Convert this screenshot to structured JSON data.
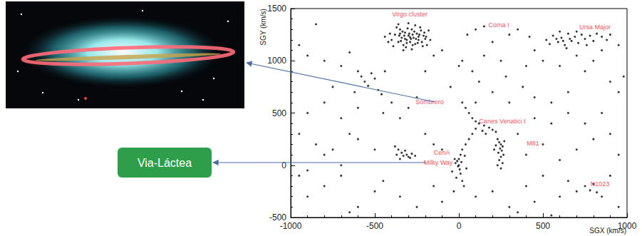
{
  "chart_data": {
    "type": "scatter",
    "xlabel": "SGX (km/s)",
    "ylabel": "SGY (km/s)",
    "xlim": [
      -1000,
      1000
    ],
    "ylim": [
      -500,
      1500
    ],
    "xticks": [
      -1000,
      -500,
      0,
      500,
      1000
    ],
    "yticks": [
      -500,
      0,
      500,
      1000,
      1500
    ],
    "grid": false,
    "color": "#000000",
    "marker": "circle",
    "side_label": "Via-Láctea",
    "annotations": [
      {
        "text": "Virgo cluster",
        "x": -292,
        "y": 1445
      },
      {
        "text": "Coma I",
        "x": 237,
        "y": 1343
      },
      {
        "text": "Ursa Major",
        "x": 809,
        "y": 1322
      },
      {
        "text": "Sombrero",
        "x": -174,
        "y": 606
      },
      {
        "text": "Canes Venatici I",
        "x": 258,
        "y": 421
      },
      {
        "text": "M81",
        "x": 441,
        "y": 210
      },
      {
        "text": "CenA",
        "x": -102,
        "y": 121
      },
      {
        "text": "Milky Way",
        "x": -123,
        "y": 26
      },
      {
        "text": "N1023",
        "x": 839,
        "y": -179
      }
    ],
    "points": [
      [
        -400,
        1200
      ],
      [
        -380,
        1250
      ],
      [
        -360,
        1180
      ],
      [
        -350,
        1300
      ],
      [
        -340,
        1220
      ],
      [
        -330,
        1150
      ],
      [
        -320,
        1270
      ],
      [
        -310,
        1200
      ],
      [
        -300,
        1240
      ],
      [
        -290,
        1180
      ],
      [
        -280,
        1300
      ],
      [
        -270,
        1220
      ],
      [
        -260,
        1160
      ],
      [
        -250,
        1260
      ],
      [
        -240,
        1200
      ],
      [
        -230,
        1320
      ],
      [
        -220,
        1180
      ],
      [
        -210,
        1240
      ],
      [
        -200,
        1210
      ],
      [
        -190,
        1150
      ],
      [
        -410,
        1260
      ],
      [
        -390,
        1140
      ],
      [
        -370,
        1320
      ],
      [
        -355,
        1240
      ],
      [
        -345,
        1190
      ],
      [
        -335,
        1280
      ],
      [
        -325,
        1240
      ],
      [
        -315,
        1130
      ],
      [
        -305,
        1310
      ],
      [
        -295,
        1260
      ],
      [
        -285,
        1210
      ],
      [
        -275,
        1150
      ],
      [
        -265,
        1280
      ],
      [
        -255,
        1210
      ],
      [
        -245,
        1170
      ],
      [
        -235,
        1250
      ],
      [
        -225,
        1290
      ],
      [
        -215,
        1140
      ],
      [
        -205,
        1270
      ],
      [
        -195,
        1230
      ],
      [
        -420,
        1180
      ],
      [
        -300,
        1360
      ],
      [
        -260,
        1340
      ],
      [
        -330,
        1100
      ],
      [
        -280,
        1110
      ],
      [
        -360,
        1350
      ],
      [
        -180,
        1290
      ],
      [
        -170,
        1200
      ],
      [
        -440,
        1230
      ],
      [
        -310,
        1170
      ],
      [
        -290,
        1225
      ],
      [
        -275,
        1250
      ],
      [
        -350,
        1260
      ],
      [
        -320,
        1210
      ],
      [
        -240,
        1230
      ],
      [
        520,
        1200
      ],
      [
        560,
        1240
      ],
      [
        590,
        1180
      ],
      [
        610,
        1220
      ],
      [
        630,
        1150
      ],
      [
        650,
        1260
      ],
      [
        670,
        1190
      ],
      [
        690,
        1230
      ],
      [
        710,
        1170
      ],
      [
        730,
        1250
      ],
      [
        750,
        1210
      ],
      [
        780,
        1240
      ],
      [
        800,
        1190
      ],
      [
        820,
        1260
      ],
      [
        850,
        1230
      ],
      [
        880,
        1200
      ],
      [
        600,
        1280
      ],
      [
        640,
        1120
      ],
      [
        700,
        1280
      ],
      [
        760,
        1150
      ],
      [
        540,
        1160
      ],
      [
        660,
        1210
      ],
      [
        620,
        1190
      ],
      [
        580,
        1210
      ],
      [
        100,
        1300
      ],
      [
        150,
        1330
      ],
      [
        50,
        1250
      ],
      [
        200,
        1180
      ],
      [
        300,
        1250
      ],
      [
        350,
        1300
      ],
      [
        420,
        1230
      ],
      [
        900,
        1250
      ],
      [
        950,
        1150
      ],
      [
        980,
        850
      ],
      [
        -950,
        1150
      ],
      [
        -900,
        1050
      ],
      [
        -850,
        1350
      ],
      [
        -700,
        950
      ],
      [
        -650,
        1080
      ],
      [
        -600,
        900
      ],
      [
        -580,
        850
      ],
      [
        -560,
        800
      ],
      [
        -540,
        760
      ],
      [
        -520,
        880
      ],
      [
        -500,
        830
      ],
      [
        -480,
        720
      ],
      [
        -460,
        680
      ],
      [
        -440,
        900
      ],
      [
        -620,
        700
      ],
      [
        -750,
        750
      ],
      [
        -800,
        1000
      ],
      [
        -150,
        1050
      ],
      [
        -100,
        1100
      ],
      [
        0,
        950
      ],
      [
        20,
        1000
      ],
      [
        80,
        900
      ],
      [
        120,
        800
      ],
      [
        150,
        1050
      ],
      [
        250,
        1000
      ],
      [
        280,
        850
      ],
      [
        400,
        950
      ],
      [
        450,
        1100
      ],
      [
        500,
        1000
      ],
      [
        600,
        950
      ],
      [
        700,
        1050
      ],
      [
        750,
        900
      ],
      [
        800,
        1000
      ],
      [
        850,
        1100
      ],
      [
        900,
        800
      ],
      [
        950,
        700
      ],
      [
        650,
        700
      ],
      [
        550,
        600
      ],
      [
        450,
        650
      ],
      [
        380,
        750
      ],
      [
        300,
        600
      ],
      [
        200,
        700
      ],
      [
        100,
        600
      ],
      [
        -50,
        750
      ],
      [
        -200,
        900
      ],
      [
        -250,
        650
      ],
      [
        -300,
        550
      ],
      [
        -400,
        600
      ],
      [
        -350,
        450
      ],
      [
        -450,
        500
      ],
      [
        -600,
        550
      ],
      [
        -700,
        450
      ],
      [
        -800,
        600
      ],
      [
        -900,
        500
      ],
      [
        -950,
        300
      ],
      [
        -850,
        200
      ],
      [
        -750,
        150
      ],
      [
        -650,
        300
      ],
      [
        20,
        600
      ],
      [
        40,
        550
      ],
      [
        60,
        500
      ],
      [
        80,
        450
      ],
      [
        100,
        420
      ],
      [
        120,
        400
      ],
      [
        150,
        380
      ],
      [
        180,
        360
      ],
      [
        200,
        340
      ],
      [
        220,
        320
      ],
      [
        100,
        350
      ],
      [
        140,
        330
      ],
      [
        160,
        300
      ],
      [
        80,
        300
      ],
      [
        60,
        250
      ],
      [
        40,
        200
      ],
      [
        20,
        150
      ],
      [
        10,
        100
      ],
      [
        0,
        60
      ],
      [
        -10,
        40
      ],
      [
        -20,
        20
      ],
      [
        -5,
        -10
      ],
      [
        5,
        -40
      ],
      [
        10,
        -80
      ],
      [
        -15,
        -120
      ],
      [
        20,
        -150
      ],
      [
        30,
        -200
      ],
      [
        -30,
        -250
      ],
      [
        0,
        0
      ],
      [
        15,
        30
      ],
      [
        -25,
        60
      ],
      [
        35,
        90
      ],
      [
        -40,
        -60
      ],
      [
        45,
        -30
      ],
      [
        230,
        250
      ],
      [
        240,
        220
      ],
      [
        250,
        200
      ],
      [
        260,
        180
      ],
      [
        245,
        160
      ],
      [
        255,
        140
      ],
      [
        235,
        120
      ],
      [
        265,
        100
      ],
      [
        250,
        80
      ],
      [
        240,
        50
      ],
      [
        260,
        20
      ],
      [
        230,
        0
      ],
      [
        250,
        -30
      ],
      [
        270,
        230
      ],
      [
        220,
        190
      ],
      [
        210,
        150
      ],
      [
        -380,
        180
      ],
      [
        -360,
        150
      ],
      [
        -340,
        120
      ],
      [
        -330,
        90
      ],
      [
        -310,
        100
      ],
      [
        -300,
        80
      ],
      [
        -290,
        70
      ],
      [
        -350,
        60
      ],
      [
        -320,
        140
      ],
      [
        -280,
        110
      ],
      [
        -370,
        100
      ],
      [
        -260,
        90
      ],
      [
        -900,
        -300
      ],
      [
        -800,
        -200
      ],
      [
        -700,
        -100
      ],
      [
        -600,
        -400
      ],
      [
        -500,
        -250
      ],
      [
        -450,
        -150
      ],
      [
        -350,
        -300
      ],
      [
        -250,
        -400
      ],
      [
        -150,
        -200
      ],
      [
        -100,
        -350
      ],
      [
        100,
        -300
      ],
      [
        200,
        -250
      ],
      [
        300,
        -400
      ],
      [
        400,
        -200
      ],
      [
        450,
        -350
      ],
      [
        500,
        -100
      ],
      [
        600,
        -300
      ],
      [
        650,
        -150
      ],
      [
        700,
        -250
      ],
      [
        750,
        -200
      ],
      [
        780,
        -240
      ],
      [
        800,
        -180
      ],
      [
        820,
        -260
      ],
      [
        850,
        -300
      ],
      [
        900,
        -100
      ],
      [
        950,
        -400
      ],
      [
        350,
        -450
      ],
      [
        550,
        -480
      ],
      [
        -650,
        -450
      ],
      [
        -950,
        -100
      ],
      [
        400,
        100
      ],
      [
        500,
        200
      ],
      [
        600,
        50
      ],
      [
        700,
        150
      ],
      [
        800,
        250
      ],
      [
        900,
        300
      ],
      [
        950,
        100
      ],
      [
        -500,
        150
      ],
      [
        -600,
        250
      ],
      [
        -700,
        0
      ],
      [
        -800,
        100
      ],
      [
        -900,
        -50
      ],
      [
        -200,
        300
      ],
      [
        -150,
        200
      ],
      [
        -100,
        150
      ],
      [
        350,
        300
      ],
      [
        450,
        450
      ],
      [
        550,
        400
      ],
      [
        650,
        500
      ],
      [
        750,
        400
      ],
      [
        850,
        500
      ]
    ]
  }
}
